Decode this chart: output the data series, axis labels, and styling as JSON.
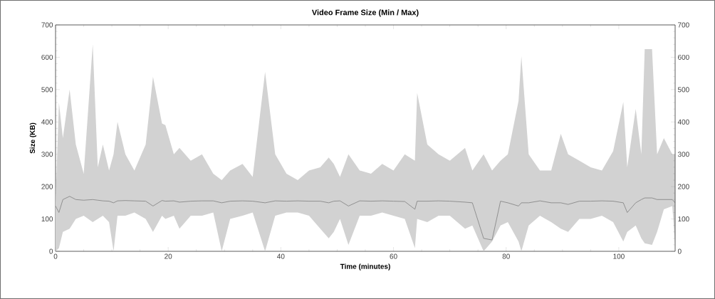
{
  "chart_data": {
    "type": "line",
    "title": "Video Frame Size (Min / Max)",
    "xlabel": "Time (minutes)",
    "ylabel": "Size (KB)",
    "xlim": [
      0,
      110
    ],
    "xticks": [
      0,
      20,
      40,
      60,
      80,
      100
    ],
    "ylim": [
      0,
      700
    ],
    "yticks": [
      0,
      100,
      200,
      300,
      400,
      500,
      600,
      700
    ],
    "y2lim": [
      0,
      700
    ],
    "y2ticks": [
      0,
      100,
      200,
      300,
      400,
      500,
      600,
      700
    ],
    "series": [
      {
        "color": "#7f7f7f",
        "x": [
          0,
          0.6,
          1.3,
          2.5,
          3.6,
          5,
          6.6,
          7.5,
          8.4,
          9.5,
          10.3,
          11,
          12.4,
          14,
          16,
          17.3,
          18.9,
          19.5,
          21,
          22,
          24,
          26,
          28,
          29.5,
          31,
          33.2,
          35,
          37.2,
          39,
          41,
          43,
          45,
          47,
          48.5,
          49.4,
          50.5,
          52,
          54,
          56,
          58,
          60,
          62,
          63.8,
          64.2,
          66,
          68,
          70,
          72.7,
          74,
          76,
          77.5,
          79,
          80.3,
          82.2,
          82.7,
          84,
          86,
          88,
          89.7,
          91,
          93,
          95,
          97,
          99,
          100.8,
          101.5,
          103,
          104,
          104.6,
          105.9,
          106.8,
          108,
          109.5,
          110
        ],
        "values": [
          140,
          120,
          160,
          170,
          160,
          158,
          160,
          158,
          156,
          155,
          150,
          156,
          157,
          156,
          155,
          140,
          157,
          155,
          156,
          152,
          155,
          156,
          156,
          150,
          155,
          156,
          155,
          150,
          156,
          155,
          156,
          155,
          155,
          150,
          155,
          156,
          140,
          156,
          155,
          156,
          155,
          154,
          130,
          155,
          155,
          156,
          155,
          152,
          150,
          40,
          35,
          155,
          150,
          140,
          150,
          150,
          156,
          150,
          150,
          145,
          155,
          155,
          156,
          155,
          150,
          120,
          150,
          160,
          165,
          165,
          160,
          160,
          160,
          150
        ],
        "upper": [
          150,
          460,
          350,
          500,
          330,
          240,
          640,
          260,
          330,
          250,
          300,
          400,
          300,
          250,
          330,
          540,
          395,
          390,
          300,
          320,
          280,
          300,
          240,
          220,
          250,
          270,
          230,
          555,
          300,
          240,
          220,
          250,
          260,
          290,
          270,
          230,
          300,
          250,
          240,
          270,
          250,
          300,
          280,
          490,
          330,
          300,
          280,
          320,
          250,
          300,
          250,
          280,
          300,
          465,
          603,
          300,
          250,
          250,
          363,
          300,
          280,
          260,
          250,
          310,
          462,
          260,
          440,
          300,
          625,
          625,
          300,
          350,
          300,
          300
        ],
        "lower": [
          0,
          10,
          60,
          70,
          100,
          110,
          90,
          100,
          110,
          90,
          0,
          110,
          110,
          120,
          100,
          60,
          110,
          100,
          110,
          70,
          110,
          110,
          120,
          0,
          100,
          110,
          120,
          0,
          110,
          120,
          120,
          110,
          70,
          40,
          60,
          100,
          20,
          110,
          110,
          120,
          110,
          100,
          10,
          100,
          90,
          110,
          110,
          70,
          80,
          0,
          30,
          80,
          90,
          30,
          0,
          80,
          110,
          90,
          70,
          60,
          100,
          100,
          110,
          90,
          30,
          60,
          80,
          40,
          25,
          20,
          60,
          130,
          140,
          20
        ]
      }
    ]
  }
}
